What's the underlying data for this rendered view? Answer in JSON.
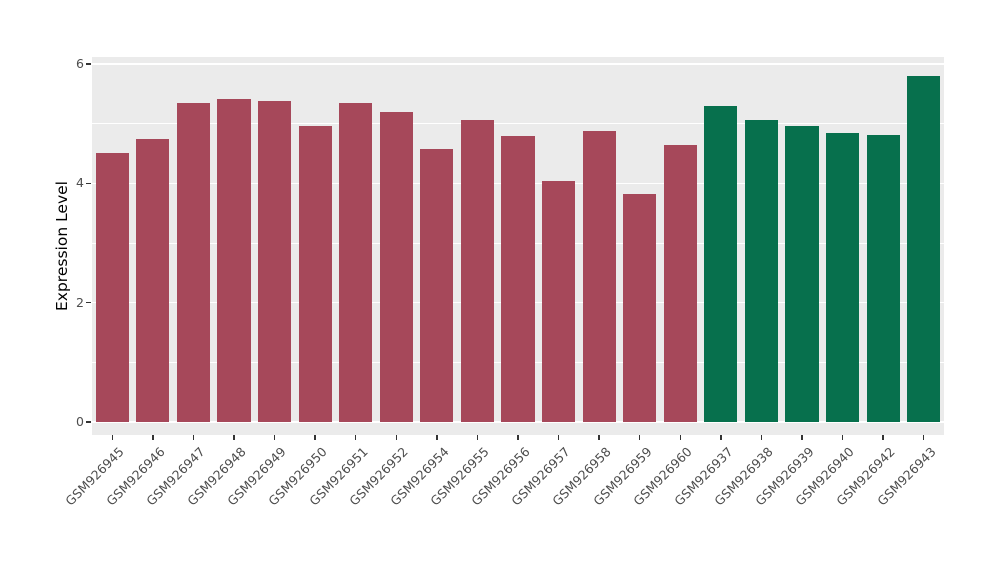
{
  "chart": {
    "ylabel": "Expression Level",
    "panel_background": "#EBEBEB",
    "gridline_color": "#FFFFFF",
    "tick_label_color": "#4D4D4D"
  },
  "chart_data": {
    "type": "bar",
    "xlabel": "",
    "ylabel": "Expression Level",
    "ylim": [
      0,
      6
    ],
    "yticks": [
      0,
      2,
      4,
      6
    ],
    "minor_gridlines": [
      1,
      3,
      5
    ],
    "grid": true,
    "legend": false,
    "categories": [
      "GSM926945",
      "GSM926946",
      "GSM926947",
      "GSM926948",
      "GSM926949",
      "GSM926950",
      "GSM926951",
      "GSM926952",
      "GSM926954",
      "GSM926955",
      "GSM926956",
      "GSM926957",
      "GSM926958",
      "GSM926959",
      "GSM926960",
      "GSM926937",
      "GSM926938",
      "GSM926939",
      "GSM926940",
      "GSM926942",
      "GSM926943"
    ],
    "values": [
      4.51,
      4.75,
      5.35,
      5.42,
      5.39,
      4.97,
      5.35,
      5.19,
      4.57,
      5.07,
      4.79,
      4.04,
      4.88,
      3.82,
      4.64,
      5.3,
      5.07,
      4.97,
      4.84,
      4.82,
      5.8
    ],
    "groups": [
      "red",
      "red",
      "red",
      "red",
      "red",
      "red",
      "red",
      "red",
      "red",
      "red",
      "red",
      "red",
      "red",
      "red",
      "red",
      "green",
      "green",
      "green",
      "green",
      "green",
      "green"
    ],
    "colors": {
      "red": "#A6485A",
      "green": "#07704D"
    }
  }
}
